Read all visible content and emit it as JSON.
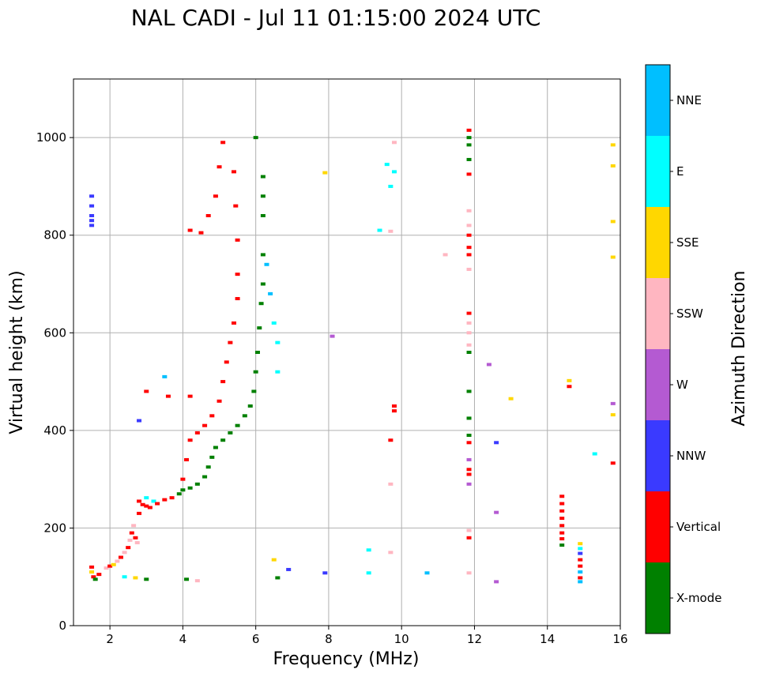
{
  "chart_data": {
    "type": "scatter",
    "title": "NAL CADI - Jul 11 01:15:00 2024 UTC",
    "xlabel": "Frequency (MHz)",
    "ylabel": "Virtual height (km)",
    "xlim": [
      1,
      16
    ],
    "ylim": [
      0,
      1120
    ],
    "xticks": [
      2,
      4,
      6,
      8,
      10,
      12,
      14,
      16
    ],
    "yticks": [
      0,
      200,
      400,
      600,
      800,
      1000
    ],
    "grid": true,
    "colorbar": {
      "title": "Azimuth Direction",
      "categories": [
        {
          "name": "X-mode",
          "color": "#008000"
        },
        {
          "name": "Vertical",
          "color": "#ff0000"
        },
        {
          "name": "NNW",
          "color": "#3a3aff"
        },
        {
          "name": "W",
          "color": "#b45ad2"
        },
        {
          "name": "SSW",
          "color": "#ffb6c1"
        },
        {
          "name": "SSE",
          "color": "#ffd700"
        },
        {
          "name": "E",
          "color": "#00ffff"
        },
        {
          "name": "NNE",
          "color": "#00bfff"
        }
      ]
    },
    "points_format": "[frequency MHz, virtual height km, category]",
    "points": [
      [
        1.5,
        880,
        "NNW"
      ],
      [
        1.5,
        860,
        "NNW"
      ],
      [
        1.5,
        840,
        "NNW"
      ],
      [
        1.5,
        830,
        "NNW"
      ],
      [
        1.5,
        820,
        "NNW"
      ],
      [
        1.5,
        120,
        "Vertical"
      ],
      [
        1.5,
        110,
        "SSE"
      ],
      [
        1.55,
        100,
        "Vertical"
      ],
      [
        1.6,
        95,
        "X-mode"
      ],
      [
        1.7,
        105,
        "Vertical"
      ],
      [
        1.9,
        118,
        "SSW"
      ],
      [
        2.0,
        122,
        "Vertical"
      ],
      [
        2.1,
        125,
        "SSE"
      ],
      [
        2.2,
        132,
        "SSW"
      ],
      [
        2.3,
        140,
        "Vertical"
      ],
      [
        2.4,
        150,
        "SSW"
      ],
      [
        2.5,
        160,
        "Vertical"
      ],
      [
        2.55,
        175,
        "SSW"
      ],
      [
        2.6,
        190,
        "Vertical"
      ],
      [
        2.65,
        205,
        "SSW"
      ],
      [
        2.7,
        180,
        "Vertical"
      ],
      [
        2.75,
        170,
        "SSW"
      ],
      [
        2.8,
        230,
        "Vertical"
      ],
      [
        2.8,
        255,
        "Vertical"
      ],
      [
        2.9,
        248,
        "Vertical"
      ],
      [
        3.0,
        245,
        "Vertical"
      ],
      [
        3.1,
        242,
        "Vertical"
      ],
      [
        3.0,
        262,
        "E"
      ],
      [
        3.2,
        255,
        "E"
      ],
      [
        3.3,
        250,
        "Vertical"
      ],
      [
        3.5,
        258,
        "Vertical"
      ],
      [
        3.7,
        262,
        "Vertical"
      ],
      [
        3.9,
        270,
        "X-mode"
      ],
      [
        4.0,
        278,
        "X-mode"
      ],
      [
        4.2,
        282,
        "X-mode"
      ],
      [
        4.4,
        290,
        "X-mode"
      ],
      [
        4.6,
        305,
        "X-mode"
      ],
      [
        4.7,
        325,
        "X-mode"
      ],
      [
        4.8,
        345,
        "X-mode"
      ],
      [
        4.9,
        365,
        "X-mode"
      ],
      [
        5.1,
        380,
        "X-mode"
      ],
      [
        5.3,
        395,
        "X-mode"
      ],
      [
        5.5,
        410,
        "X-mode"
      ],
      [
        5.7,
        430,
        "X-mode"
      ],
      [
        5.85,
        450,
        "X-mode"
      ],
      [
        5.95,
        480,
        "X-mode"
      ],
      [
        6.0,
        520,
        "X-mode"
      ],
      [
        6.05,
        560,
        "X-mode"
      ],
      [
        6.1,
        610,
        "X-mode"
      ],
      [
        6.15,
        660,
        "X-mode"
      ],
      [
        6.2,
        700,
        "X-mode"
      ],
      [
        6.2,
        760,
        "X-mode"
      ],
      [
        6.2,
        840,
        "X-mode"
      ],
      [
        6.2,
        880,
        "X-mode"
      ],
      [
        6.2,
        920,
        "X-mode"
      ],
      [
        6.0,
        1000,
        "X-mode"
      ],
      [
        6.3,
        740,
        "NNE"
      ],
      [
        6.4,
        680,
        "NNE"
      ],
      [
        6.5,
        620,
        "E"
      ],
      [
        6.6,
        580,
        "E"
      ],
      [
        6.6,
        520,
        "E"
      ],
      [
        4.0,
        300,
        "Vertical"
      ],
      [
        4.1,
        340,
        "Vertical"
      ],
      [
        4.2,
        380,
        "Vertical"
      ],
      [
        4.4,
        395,
        "Vertical"
      ],
      [
        4.6,
        410,
        "Vertical"
      ],
      [
        4.8,
        430,
        "Vertical"
      ],
      [
        5.0,
        460,
        "Vertical"
      ],
      [
        5.1,
        500,
        "Vertical"
      ],
      [
        5.2,
        540,
        "Vertical"
      ],
      [
        5.3,
        580,
        "Vertical"
      ],
      [
        5.4,
        620,
        "Vertical"
      ],
      [
        5.5,
        670,
        "Vertical"
      ],
      [
        5.5,
        720,
        "Vertical"
      ],
      [
        5.5,
        790,
        "Vertical"
      ],
      [
        5.45,
        860,
        "Vertical"
      ],
      [
        5.4,
        930,
        "Vertical"
      ],
      [
        5.1,
        990,
        "Vertical"
      ],
      [
        5.0,
        940,
        "Vertical"
      ],
      [
        4.9,
        880,
        "Vertical"
      ],
      [
        4.7,
        840,
        "Vertical"
      ],
      [
        4.5,
        805,
        "Vertical"
      ],
      [
        4.2,
        810,
        "Vertical"
      ],
      [
        3.6,
        470,
        "Vertical"
      ],
      [
        3.0,
        480,
        "Vertical"
      ],
      [
        3.5,
        510,
        "NNE"
      ],
      [
        4.2,
        470,
        "Vertical"
      ],
      [
        2.8,
        420,
        "NNW"
      ],
      [
        3.0,
        95,
        "X-mode"
      ],
      [
        2.7,
        98,
        "SSE"
      ],
      [
        2.4,
        100,
        "E"
      ],
      [
        4.1,
        95,
        "X-mode"
      ],
      [
        4.4,
        92,
        "SSW"
      ],
      [
        6.5,
        135,
        "SSE"
      ],
      [
        6.6,
        98,
        "X-mode"
      ],
      [
        6.9,
        115,
        "NNW"
      ],
      [
        7.9,
        108,
        "NNW"
      ],
      [
        9.1,
        108,
        "E"
      ],
      [
        9.1,
        155,
        "E"
      ],
      [
        9.7,
        150,
        "SSW"
      ],
      [
        10.7,
        108,
        "NNE"
      ],
      [
        9.7,
        290,
        "SSW"
      ],
      [
        9.7,
        380,
        "Vertical"
      ],
      [
        9.8,
        450,
        "Vertical"
      ],
      [
        9.8,
        440,
        "Vertical"
      ],
      [
        9.4,
        810,
        "E"
      ],
      [
        9.7,
        808,
        "SSW"
      ],
      [
        9.7,
        900,
        "E"
      ],
      [
        9.6,
        945,
        "E"
      ],
      [
        9.8,
        930,
        "E"
      ],
      [
        9.8,
        990,
        "SSW"
      ],
      [
        7.9,
        928,
        "SSE"
      ],
      [
        8.1,
        593,
        "W"
      ],
      [
        11.2,
        760,
        "SSW"
      ],
      [
        11.85,
        1015,
        "Vertical"
      ],
      [
        11.85,
        1000,
        "X-mode"
      ],
      [
        11.85,
        985,
        "X-mode"
      ],
      [
        11.85,
        955,
        "X-mode"
      ],
      [
        11.85,
        925,
        "Vertical"
      ],
      [
        11.85,
        850,
        "SSW"
      ],
      [
        11.85,
        820,
        "SSW"
      ],
      [
        11.85,
        800,
        "Vertical"
      ],
      [
        11.85,
        775,
        "Vertical"
      ],
      [
        11.85,
        760,
        "Vertical"
      ],
      [
        11.85,
        730,
        "SSW"
      ],
      [
        11.85,
        640,
        "Vertical"
      ],
      [
        11.85,
        620,
        "SSW"
      ],
      [
        11.85,
        600,
        "SSW"
      ],
      [
        11.85,
        575,
        "SSW"
      ],
      [
        11.85,
        560,
        "X-mode"
      ],
      [
        11.85,
        480,
        "X-mode"
      ],
      [
        11.85,
        425,
        "X-mode"
      ],
      [
        11.85,
        390,
        "X-mode"
      ],
      [
        11.85,
        375,
        "Vertical"
      ],
      [
        11.85,
        340,
        "W"
      ],
      [
        11.85,
        320,
        "Vertical"
      ],
      [
        11.85,
        310,
        "Vertical"
      ],
      [
        11.85,
        290,
        "W"
      ],
      [
        11.85,
        195,
        "SSW"
      ],
      [
        11.85,
        180,
        "Vertical"
      ],
      [
        11.85,
        108,
        "SSW"
      ],
      [
        12.4,
        535,
        "W"
      ],
      [
        12.6,
        375,
        "NNW"
      ],
      [
        12.6,
        232,
        "W"
      ],
      [
        12.6,
        90,
        "W"
      ],
      [
        13.0,
        465,
        "SSE"
      ],
      [
        14.4,
        265,
        "Vertical"
      ],
      [
        14.4,
        250,
        "Vertical"
      ],
      [
        14.4,
        235,
        "Vertical"
      ],
      [
        14.4,
        220,
        "Vertical"
      ],
      [
        14.4,
        205,
        "Vertical"
      ],
      [
        14.4,
        190,
        "Vertical"
      ],
      [
        14.4,
        178,
        "Vertical"
      ],
      [
        14.4,
        165,
        "X-mode"
      ],
      [
        14.6,
        502,
        "SSE"
      ],
      [
        14.6,
        490,
        "Vertical"
      ],
      [
        14.9,
        168,
        "SSE"
      ],
      [
        14.9,
        158,
        "E"
      ],
      [
        14.9,
        148,
        "NNW"
      ],
      [
        14.9,
        135,
        "Vertical"
      ],
      [
        14.9,
        122,
        "Vertical"
      ],
      [
        14.9,
        110,
        "NNE"
      ],
      [
        14.9,
        98,
        "Vertical"
      ],
      [
        14.9,
        90,
        "NNE"
      ],
      [
        15.3,
        352,
        "E"
      ],
      [
        15.8,
        985,
        "SSE"
      ],
      [
        15.8,
        942,
        "SSE"
      ],
      [
        15.8,
        828,
        "SSE"
      ],
      [
        15.8,
        755,
        "SSE"
      ],
      [
        15.8,
        455,
        "W"
      ],
      [
        15.8,
        432,
        "SSE"
      ],
      [
        15.8,
        333,
        "Vertical"
      ]
    ]
  }
}
